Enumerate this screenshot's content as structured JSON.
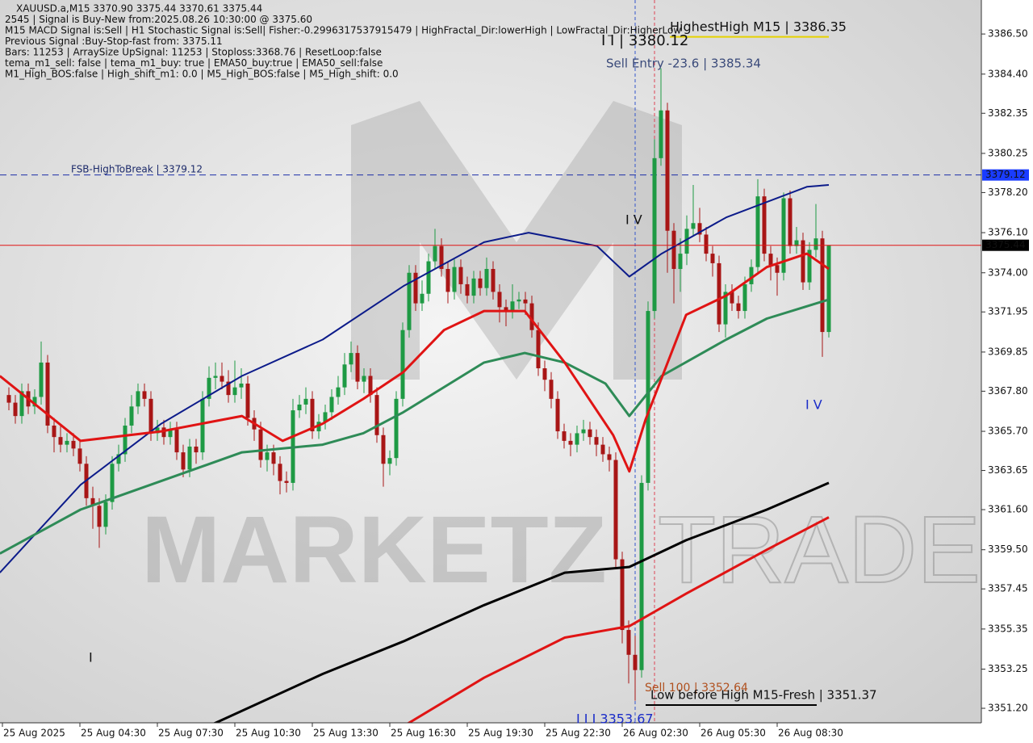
{
  "chart_data": {
    "type": "candlestick",
    "header": [
      "XAUUSD.a,M15  3370.90 3375.44 3370.61 3375.44",
      "2545 | Signal is Buy-New from:2025.08.26 10:30:00 @ 3375.60",
      "M15 MACD Signal is:Sell | H1 Stochastic Signal is:Sell| Fisher:-0.2996317537915479 | HighFractal_Dir:lowerHigh | LowFractal_Dir:HigherLow",
      "Previous Signal :Buy-Stop-fast from: 3375.11",
      "Bars: 11253 | ArraySize UpSignal: 11253 | Stoploss:3368.76 | ResetLoop:false",
      "tema_m1_sell: false | tema_m1_buy: true | EMA50_buy:true | EMA50_sell:false",
      "M1_High_BOS:false | High_shift_m1: 0.0 | M5_High_BOS:false | M5_High_shift: 0.0"
    ],
    "watermark": [
      "MARKETZ",
      "TRADE"
    ],
    "ylim": [
      3350.44,
      3388.28
    ],
    "yticks": [
      {
        "value": 3386.5,
        "label": "3386.50"
      },
      {
        "value": 3384.4,
        "label": "3384.40"
      },
      3382.35,
      3380.25,
      {
        "value": 3378.2,
        "label": "3378.20"
      },
      {
        "value": 3376.1,
        "label": "3376.10"
      },
      {
        "value": 3374,
        "label": "3374.00"
      },
      3371.95,
      3369.85,
      {
        "value": 3367.8,
        "label": "3367.80"
      },
      {
        "value": 3365.7,
        "label": "3365.70"
      },
      3363.65,
      {
        "value": 3361.6,
        "label": "3361.60"
      },
      {
        "value": 3359.5,
        "label": "3359.50"
      },
      3357.45,
      3355.35,
      3353.25,
      {
        "value": 3351.2,
        "label": "3351.20"
      }
    ],
    "xlim": [
      -1.375,
      150.625
    ],
    "xticks": [
      {
        "value": -1,
        "label": "25 Aug 2025"
      },
      {
        "value": 11,
        "label": "25 Aug 04:30"
      },
      {
        "value": 23,
        "label": "25 Aug 07:30"
      },
      {
        "value": 35,
        "label": "25 Aug 10:30"
      },
      {
        "value": 47,
        "label": "25 Aug 13:30"
      },
      {
        "value": 59,
        "label": "25 Aug 16:30"
      },
      {
        "value": 71,
        "label": "25 Aug 19:30"
      },
      {
        "value": 83,
        "label": "25 Aug 22:30"
      },
      {
        "value": 95,
        "label": "26 Aug 02:30"
      },
      {
        "value": 107,
        "label": "26 Aug 05:30"
      },
      {
        "value": 119,
        "label": "26 Aug 08:30"
      }
    ],
    "up_color": "#1e9a44",
    "down_color": "#a81616",
    "open": [
      3367.6,
      3367.2,
      3366.5,
      3367.8,
      3367.0,
      3367.5,
      3369.3,
      3366.0,
      3365.4,
      3365.0,
      3365.2,
      3364.8,
      3364.0,
      3362.2,
      3361.8,
      3360.7,
      3362.0,
      3364.0,
      3364.5,
      3366.0,
      3367.0,
      3367.8,
      3367.4,
      3365.6,
      3365.9,
      3365.4,
      3365.8,
      3364.6,
      3363.7,
      3364.9,
      3364.6,
      3367.4,
      3368.5,
      3368.6,
      3368.3,
      3367.6,
      3368.0,
      3368.2,
      3366.4,
      3365.8,
      3364.2,
      3364.6,
      3364.0,
      3363.1,
      3363.0,
      3366.8,
      3367.1,
      3367.4,
      3365.7,
      3366.2,
      3366.7,
      3367.5,
      3368.0,
      3369.2,
      3369.8,
      3368.3,
      3368.6,
      3367.6,
      3365.5,
      3364.0,
      3364.3,
      3367.4,
      3371.0,
      3374.0,
      3372.4,
      3372.9,
      3374.6,
      3375.4,
      3374.2,
      3373.0,
      3374.3,
      3373.4,
      3372.8,
      3373.7,
      3373.2,
      3374.2,
      3373.0,
      3372.2,
      3372.0,
      3372.5,
      3372.6,
      3372.4,
      3371.0,
      3369.0,
      3368.4,
      3367.4,
      3365.7,
      3365.2,
      3365.0,
      3365.6,
      3365.8,
      3365.4,
      3365.0,
      3364.5,
      3364.2,
      3359.0,
      3355.3,
      3354.0,
      3353.2,
      3363.0,
      3372.0,
      3380.0,
      3382.5,
      3376.2,
      3374.2,
      3375.0,
      3376.3,
      3376.6,
      3376.0,
      3375.0,
      3374.5,
      3371.3,
      3373.0,
      3372.4,
      3372.0,
      3373.4,
      3374.3,
      3378.0,
      3375.0,
      3374.4,
      3374.0,
      3377.9,
      3375.4,
      3375.7,
      3373.5,
      3375.2,
      3375.8,
      3370.9
    ],
    "high": [
      3368.0,
      3367.6,
      3368.2,
      3368.2,
      3367.9,
      3370.4,
      3369.7,
      3366.4,
      3366.0,
      3365.6,
      3365.6,
      3365.2,
      3364.4,
      3362.8,
      3362.2,
      3362.4,
      3364.4,
      3365.0,
      3366.4,
      3367.6,
      3368.2,
      3368.2,
      3367.8,
      3366.3,
      3366.3,
      3366.2,
      3366.2,
      3365.0,
      3365.3,
      3365.3,
      3367.8,
      3369.1,
      3369.3,
      3369.3,
      3368.9,
      3369.4,
      3369.0,
      3368.6,
      3366.8,
      3366.2,
      3365.0,
      3365.0,
      3364.4,
      3363.6,
      3367.4,
      3367.6,
      3368.0,
      3367.8,
      3366.6,
      3367.1,
      3367.9,
      3368.6,
      3369.8,
      3370.4,
      3370.2,
      3369.0,
      3369.0,
      3368.0,
      3365.9,
      3364.7,
      3367.8,
      3371.4,
      3374.4,
      3374.4,
      3373.6,
      3375.0,
      3376.3,
      3375.8,
      3374.6,
      3374.7,
      3374.7,
      3373.8,
      3374.1,
      3374.1,
      3374.8,
      3374.6,
      3373.4,
      3372.6,
      3373.4,
      3373.0,
      3373.0,
      3372.8,
      3371.4,
      3369.4,
      3368.8,
      3367.8,
      3366.1,
      3365.6,
      3366.0,
      3366.3,
      3366.2,
      3365.8,
      3365.4,
      3364.9,
      3364.6,
      3359.4,
      3355.8,
      3355.0,
      3363.4,
      3372.5,
      3381.0,
      3384.7,
      3382.9,
      3376.6,
      3375.8,
      3377.0,
      3378.6,
      3377.4,
      3376.4,
      3375.4,
      3374.9,
      3373.4,
      3373.4,
      3372.8,
      3373.8,
      3374.7,
      3378.9,
      3378.4,
      3375.4,
      3374.8,
      3378.2,
      3378.3,
      3376.4,
      3376.1,
      3375.6,
      3377.6,
      3376.2,
      3375.44
    ],
    "low": [
      3366.8,
      3366.1,
      3366.1,
      3366.6,
      3366.6,
      3367.1,
      3365.6,
      3364.6,
      3364.6,
      3364.6,
      3364.4,
      3363.6,
      3361.8,
      3360.6,
      3359.6,
      3360.3,
      3361.6,
      3363.6,
      3364.1,
      3365.6,
      3366.6,
      3367.0,
      3365.2,
      3365.2,
      3365.0,
      3365.0,
      3364.2,
      3363.3,
      3363.3,
      3364.0,
      3364.2,
      3367.0,
      3367.9,
      3367.9,
      3367.2,
      3367.2,
      3367.4,
      3366.0,
      3365.2,
      3363.8,
      3363.6,
      3363.4,
      3362.4,
      3362.5,
      3362.6,
      3366.4,
      3366.6,
      3365.3,
      3365.3,
      3365.8,
      3366.3,
      3367.1,
      3367.6,
      3368.8,
      3367.9,
      3367.7,
      3367.2,
      3365.1,
      3362.8,
      3363.4,
      3363.9,
      3367.0,
      3370.6,
      3372.0,
      3372.0,
      3372.5,
      3374.2,
      3373.8,
      3372.4,
      3372.6,
      3372.9,
      3372.4,
      3372.4,
      3372.8,
      3372.8,
      3372.6,
      3371.4,
      3371.2,
      3371.6,
      3372.1,
      3371.8,
      3370.6,
      3368.6,
      3367.8,
      3366.9,
      3365.3,
      3364.8,
      3364.4,
      3364.6,
      3365.2,
      3365.0,
      3364.4,
      3364.1,
      3363.6,
      3358.6,
      3354.6,
      3352.5,
      3351.6,
      3352.8,
      3362.6,
      3371.6,
      3379.6,
      3374.0,
      3372.4,
      3373.0,
      3374.4,
      3375.9,
      3375.6,
      3374.6,
      3373.8,
      3370.9,
      3370.6,
      3372.0,
      3371.6,
      3371.6,
      3373.0,
      3373.9,
      3374.6,
      3373.6,
      3372.8,
      3373.6,
      3375.0,
      3375.0,
      3373.1,
      3373.1,
      3374.8,
      3369.6,
      3370.61
    ],
    "close": [
      3367.2,
      3366.5,
      3367.8,
      3367.0,
      3367.5,
      3369.3,
      3366.0,
      3365.4,
      3365.0,
      3365.2,
      3364.8,
      3364.0,
      3362.2,
      3361.8,
      3360.7,
      3362.0,
      3364.0,
      3364.5,
      3366.0,
      3367.0,
      3367.8,
      3367.4,
      3365.6,
      3365.9,
      3365.4,
      3365.8,
      3364.6,
      3363.7,
      3364.9,
      3364.6,
      3367.4,
      3368.5,
      3368.6,
      3368.3,
      3367.6,
      3368.0,
      3368.2,
      3366.4,
      3365.8,
      3364.2,
      3364.6,
      3364.0,
      3363.1,
      3363.0,
      3366.8,
      3367.1,
      3367.4,
      3365.7,
      3366.2,
      3366.7,
      3367.5,
      3368.0,
      3369.2,
      3369.8,
      3368.3,
      3368.6,
      3367.6,
      3365.5,
      3364.0,
      3364.3,
      3367.4,
      3371.0,
      3374.0,
      3372.4,
      3372.9,
      3374.6,
      3375.4,
      3374.2,
      3373.0,
      3374.3,
      3373.4,
      3372.8,
      3373.7,
      3373.2,
      3374.2,
      3373.0,
      3372.2,
      3372.0,
      3372.5,
      3372.6,
      3372.4,
      3371.0,
      3369.0,
      3368.4,
      3367.4,
      3365.7,
      3365.2,
      3365.0,
      3365.6,
      3365.8,
      3365.4,
      3365.0,
      3364.5,
      3364.2,
      3359.0,
      3355.3,
      3354.0,
      3353.2,
      3363.0,
      3372.0,
      3380.0,
      3382.5,
      3376.2,
      3374.2,
      3375.0,
      3376.3,
      3376.6,
      3376.0,
      3375.0,
      3374.5,
      3371.3,
      3373.0,
      3372.4,
      3372.0,
      3373.4,
      3374.3,
      3378.0,
      3375.0,
      3374.4,
      3374.0,
      3377.9,
      3375.4,
      3375.7,
      3373.5,
      3375.2,
      3375.8,
      3370.9,
      3375.44
    ],
    "lines": [
      {
        "color": "#0c1b8a",
        "width": 2,
        "x": [
          -1.4,
          11.1,
          23.6,
          36.1,
          48.6,
          61.1,
          73.6,
          80.5,
          91.1,
          96.1,
          101.1,
          111.1,
          123.6,
          127
        ],
        "values": [
          3358.3,
          3362.9,
          3366.1,
          3368.6,
          3370.5,
          3373.3,
          3375.6,
          3376.1,
          3375.4,
          3373.8,
          3375.0,
          3376.9,
          3378.5,
          3378.6
        ]
      },
      {
        "color": "#2e8b57",
        "width": 3,
        "x": [
          -1.4,
          11.1,
          23.6,
          36.1,
          48.6,
          54.9,
          61.1,
          73.6,
          79.9,
          86.1,
          92.4,
          96.1,
          101.1,
          111.1,
          117.4,
          127
        ],
        "values": [
          3359.3,
          3361.6,
          3363.1,
          3364.6,
          3365.0,
          3365.6,
          3366.7,
          3369.3,
          3369.8,
          3369.3,
          3368.2,
          3366.5,
          3368.6,
          3370.5,
          3371.6,
          3372.6
        ]
      },
      {
        "color": "#e01414",
        "width": 3,
        "x": [
          -1.4,
          11.1,
          23.6,
          36.1,
          42.4,
          48.6,
          54.9,
          61.1,
          67.4,
          73.6,
          79.9,
          86.1,
          93.6,
          96.1,
          98.6,
          104.9,
          111.1,
          117.4,
          123.6,
          127
        ],
        "values": [
          3368.6,
          3365.2,
          3365.7,
          3366.5,
          3365.2,
          3366.1,
          3367.4,
          3368.8,
          3371.0,
          3372.0,
          3372.0,
          3369.3,
          3365.5,
          3363.6,
          3366.3,
          3371.8,
          3372.8,
          3374.3,
          3375.0,
          3374.2
        ]
      },
      {
        "color": "#000000",
        "width": 3,
        "x": [
          31.8,
          48.6,
          61.1,
          73.6,
          86.1,
          96.1,
          104.9,
          117.4,
          127
        ],
        "values": [
          3350.4,
          3353.0,
          3354.7,
          3356.6,
          3358.3,
          3358.6,
          3360.0,
          3361.6,
          3363.0
        ]
      },
      {
        "color": "#e01414",
        "width": 3,
        "x": [
          61.8,
          73.6,
          86.1,
          96.1,
          104.9,
          117.4,
          127
        ],
        "values": [
          3350.4,
          3352.8,
          3354.9,
          3355.5,
          3357.2,
          3359.5,
          3361.2
        ]
      }
    ],
    "levels": [
      {
        "value": 3386.35,
        "color": "#e6d200",
        "style": "solid"
      },
      {
        "value": 3379.12,
        "color": "#1c2fa8",
        "style": "dashed"
      },
      {
        "value": 3351.37,
        "color": "#000000",
        "style": "solid"
      }
    ],
    "price_tags": [
      {
        "value": 3379.12,
        "color": "#1a3cff"
      },
      {
        "value": 3375.44,
        "color": "#000000"
      }
    ],
    "annotations": [
      {
        "text": "HighestHigh    M15 | 3386.35",
        "color": "#111111"
      },
      {
        "text": "I I | 3380.12",
        "color": "#111111"
      },
      {
        "text": "Sell Entry -23.6 | 3385.34",
        "color": "#3a4a7a"
      },
      {
        "text": "FSB-HighToBreak | 3379.12",
        "color": "#1c2a6a"
      },
      {
        "text": "I V",
        "color": "#111111"
      },
      {
        "text": "I V",
        "color": "#1a2cc8"
      },
      {
        "text": "I",
        "color": "#111111"
      },
      {
        "text": "Sell 100 | 3352.64",
        "color": "#b0501e"
      },
      {
        "text": "Low before High   M15-Fresh | 3351.37",
        "color": "#111111"
      },
      {
        "text": "I I I 3353.67",
        "color": "#1a2cc8"
      }
    ]
  }
}
